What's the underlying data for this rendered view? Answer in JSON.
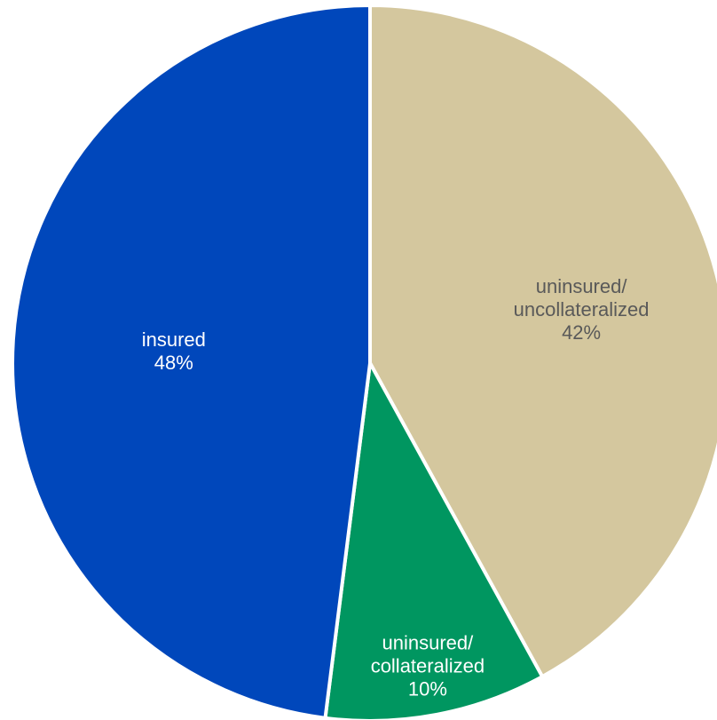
{
  "chart_data": {
    "type": "pie",
    "title": "",
    "start_angle_deg": 0,
    "direction": "clockwise",
    "slices": [
      {
        "lines": [
          "uninsured/",
          "uncollateralized"
        ],
        "category": "uninsured/ uncollateralized",
        "value": 42,
        "value_label": "42%",
        "color": "#D4C79E",
        "text_color": "#595959"
      },
      {
        "lines": [
          "uninsured/",
          "collateralized"
        ],
        "category": "uninsured/ collateralized",
        "value": 10,
        "value_label": "10%",
        "color": "#009660",
        "text_color": "#ffffff"
      },
      {
        "lines": [
          "insured"
        ],
        "category": "insured",
        "value": 48,
        "value_label": "48%",
        "color": "#0047BB",
        "text_color": "#ffffff"
      }
    ]
  }
}
